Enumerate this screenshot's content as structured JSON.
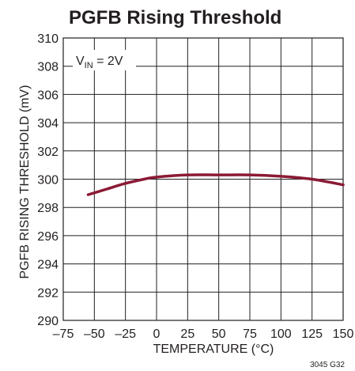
{
  "chart_data": {
    "type": "line",
    "title": "PGFB Rising Threshold",
    "xlabel": "TEMPERATURE (°C)",
    "ylabel": "PGFB RISING THRESHOLD (mV)",
    "xlim": [
      -75,
      150
    ],
    "ylim": [
      290,
      310
    ],
    "xticks": [
      -75,
      -50,
      -25,
      0,
      25,
      50,
      75,
      100,
      125,
      150
    ],
    "xtick_labels": [
      "–75",
      "–50",
      "–25",
      "0",
      "25",
      "50",
      "75",
      "100",
      "125",
      "150"
    ],
    "yticks": [
      290,
      292,
      294,
      296,
      298,
      300,
      302,
      304,
      306,
      308,
      310
    ],
    "ytick_labels": [
      "290",
      "292",
      "294",
      "296",
      "298",
      "300",
      "302",
      "304",
      "306",
      "308",
      "310"
    ],
    "grid": true,
    "annotation": {
      "main": "V",
      "sub": "IN",
      "rest": " = 2V"
    },
    "figure_id": "3045 G32",
    "series": [
      {
        "color": "#8b1a35",
        "x": [
          -55,
          -40,
          -25,
          -10,
          0,
          25,
          50,
          75,
          100,
          125,
          150
        ],
        "y": [
          298.9,
          299.3,
          299.7,
          300.0,
          300.15,
          300.3,
          300.3,
          300.3,
          300.2,
          300.0,
          299.6
        ]
      }
    ]
  }
}
